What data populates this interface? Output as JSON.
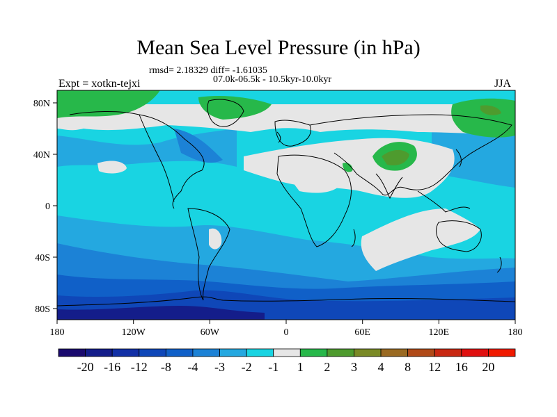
{
  "title": "Mean Sea Level Pressure (in hPa)",
  "stats": "rmsd= 2.18329 diff= -1.61035",
  "period": "07.0k-06.5k - 10.5kyr-10.0kyr",
  "experiment": "Expt = xotkn-tejxi",
  "season": "JJA",
  "lat_ticks": [
    "80N",
    "40N",
    "0",
    "40S",
    "80S"
  ],
  "lon_ticks": [
    "180",
    "120W",
    "60W",
    "0",
    "60E",
    "120E",
    "180"
  ],
  "colorbar": {
    "labels": [
      "-20",
      "-16",
      "-12",
      "-8",
      "-4",
      "-3",
      "-2",
      "-1",
      "1",
      "2",
      "3",
      "4",
      "8",
      "12",
      "16",
      "20"
    ],
    "colors": [
      "#1a0a6e",
      "#141d8a",
      "#1230a6",
      "#0f47b8",
      "#1060c8",
      "#1c82d6",
      "#24a8e0",
      "#19d4e2",
      "#e6e6e6",
      "#27b84a",
      "#4e9b2e",
      "#7a8a26",
      "#9a6a22",
      "#b04a18",
      "#c82812",
      "#e01010",
      "#f01a00"
    ]
  },
  "map_colors": {
    "ocean_background": "#19d4e2",
    "weak_negative": "#24a8e0",
    "moderate_negative": "#1c82d6",
    "strong_negative": "#1060c8",
    "very_strong_negative": "#0f47b8",
    "neutral": "#e6e6e6",
    "weak_positive": "#27b84a",
    "moderate_positive": "#4e9b2e",
    "strong_positive": "#7a8a26"
  }
}
